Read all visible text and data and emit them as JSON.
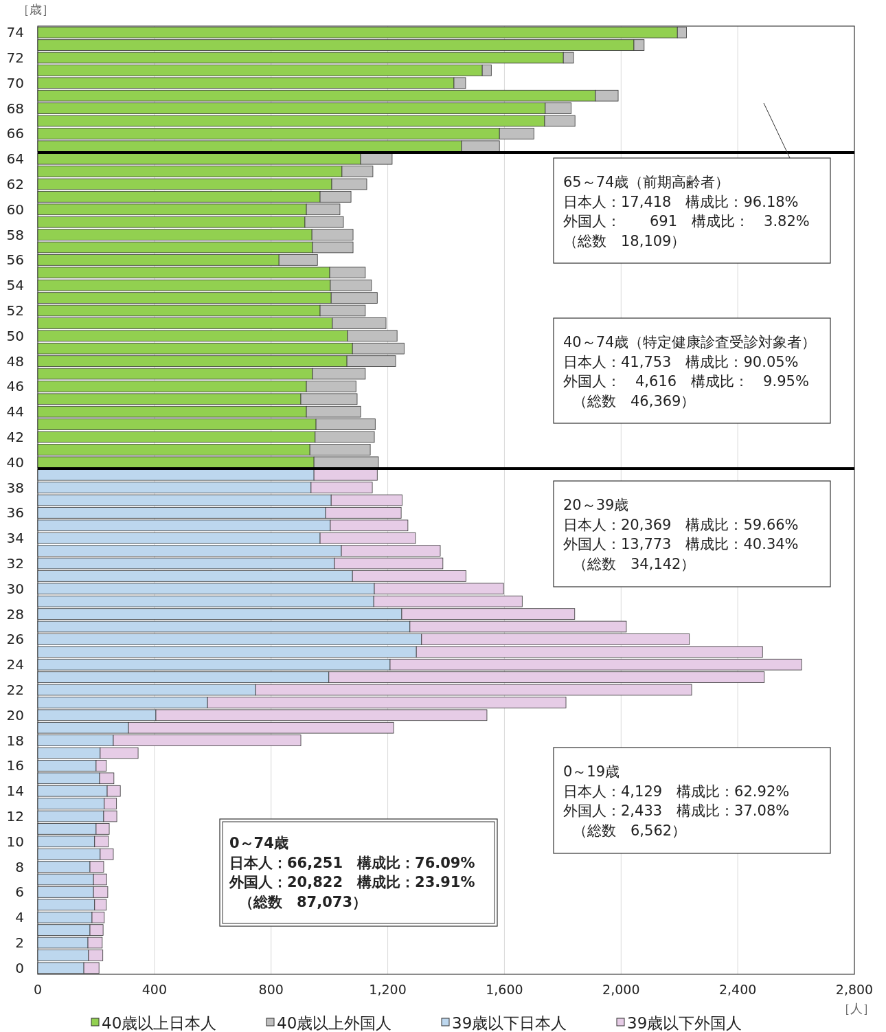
{
  "chart_data": {
    "type": "bar",
    "orientation": "horizontal",
    "stacked": true,
    "categories": [
      "74",
      null,
      "72",
      null,
      "70",
      null,
      "68",
      null,
      "66",
      null,
      "64",
      null,
      "62",
      null,
      "60",
      null,
      "58",
      null,
      "56",
      null,
      "54",
      null,
      "52",
      null,
      "50",
      null,
      "48",
      null,
      "46",
      null,
      "44",
      null,
      "42",
      null,
      "40",
      null,
      "38",
      null,
      "36",
      null,
      "34",
      null,
      "32",
      null,
      "30",
      null,
      "28",
      null,
      "26",
      null,
      "24",
      null,
      "22",
      null,
      "20",
      null,
      "18",
      null,
      "16",
      null,
      "14",
      null,
      "12",
      null,
      "10",
      null,
      "8",
      null,
      "6",
      null,
      "4",
      null,
      "2",
      null,
      "0"
    ],
    "series": [
      {
        "name": "40歳以上日本人",
        "color": "#92d050",
        "values": [
          2193,
          2044,
          1802,
          1524,
          1427,
          1912,
          1740,
          1738,
          1583,
          1453,
          1107,
          1043,
          1008,
          968,
          921,
          916,
          940,
          942,
          827,
          1001,
          1003,
          1006,
          968,
          1010,
          1062,
          1079,
          1060,
          942,
          921,
          902,
          921,
          954,
          951,
          933,
          947,
          null,
          null,
          null,
          null,
          null,
          null,
          null,
          null,
          null,
          null,
          null,
          null,
          null,
          null,
          null,
          null,
          null,
          null,
          null,
          null,
          null,
          null,
          null,
          null,
          null,
          null,
          null,
          null,
          null,
          null,
          null,
          null,
          null,
          null,
          null,
          null,
          null,
          null,
          null,
          null
        ]
      },
      {
        "name": "40歳以上外国人",
        "color": "#bfbfbf",
        "values": [
          31,
          35,
          35,
          31,
          40,
          78,
          89,
          104,
          118,
          130,
          108,
          106,
          120,
          106,
          115,
          132,
          141,
          139,
          132,
          122,
          141,
          158,
          155,
          184,
          170,
          177,
          167,
          181,
          170,
          193,
          186,
          203,
          203,
          207,
          221,
          null,
          null,
          null,
          null,
          null,
          null,
          null,
          null,
          null,
          null,
          null,
          null,
          null,
          null,
          null,
          null,
          null,
          null,
          null,
          null,
          null,
          null,
          null,
          null,
          null,
          null,
          null,
          null,
          null,
          null,
          null,
          null,
          null,
          null,
          null,
          null,
          null,
          null,
          null,
          null
        ]
      },
      {
        "name": "39歳以下日本人",
        "color": "#bdd7ee",
        "values": [
          null,
          null,
          null,
          null,
          null,
          null,
          null,
          null,
          null,
          null,
          null,
          null,
          null,
          null,
          null,
          null,
          null,
          null,
          null,
          null,
          null,
          null,
          null,
          null,
          null,
          null,
          null,
          null,
          null,
          null,
          null,
          null,
          null,
          null,
          null,
          947,
          937,
          1006,
          987,
          1003,
          968,
          1041,
          1017,
          1079,
          1154,
          1152,
          1248,
          1276,
          1316,
          1298,
          1208,
          998,
          747,
          582,
          405,
          311,
          259,
          214,
          200,
          212,
          238,
          228,
          226,
          200,
          195,
          214,
          179,
          191,
          191,
          195,
          186,
          179,
          172,
          174,
          158
        ]
      },
      {
        "name": "39歳以下外国人",
        "color": "#e6cce6",
        "values": [
          null,
          null,
          null,
          null,
          null,
          null,
          null,
          null,
          null,
          null,
          null,
          null,
          null,
          null,
          null,
          null,
          null,
          null,
          null,
          null,
          null,
          null,
          null,
          null,
          null,
          null,
          null,
          null,
          null,
          null,
          null,
          null,
          null,
          null,
          null,
          217,
          210,
          243,
          259,
          266,
          327,
          339,
          372,
          389,
          443,
          509,
          593,
          742,
          918,
          1187,
          1411,
          1493,
          1495,
          1229,
          1135,
          909,
          643,
          130,
          35,
          49,
          45,
          42,
          45,
          45,
          47,
          45,
          47,
          45,
          49,
          40,
          42,
          45,
          49,
          49,
          52
        ]
      }
    ],
    "xlim": [
      0,
      2800
    ],
    "xticks": [
      0,
      400,
      800,
      {
        "value": 1200,
        "label": "1,200"
      },
      {
        "value": 1600,
        "label": "1,600"
      },
      {
        "value": 2000,
        "label": "2,000"
      },
      {
        "value": 2400,
        "label": "2,400"
      },
      {
        "value": 2800,
        "label": "2,800"
      }
    ],
    "xlabel": "［人］",
    "ylabel": "［歳］",
    "grid": "x",
    "legend": "bottom",
    "annotations": [
      "65～74歳（前期高齢者）",
      "日本人：17,418　構成比：96.18%",
      "外国人：　　691　構成比：　3.82%",
      "（総数　18,109）",
      "40～74歳（特定健康診査受診対象者）",
      "日本人：41,753　構成比：90.05%",
      "外国人：　4,616　構成比：　9.95%",
      "（総数　46,369）",
      "20～39歳",
      "日本人：20,369　構成比：59.66%",
      "外国人：13,773　構成比：40.34%",
      "（総数　34,142）",
      "0～19歳",
      "日本人：4,129　構成比：62.92%",
      "外国人：2,433　構成比：37.08%",
      "（総数　6,562）",
      "0～74歳",
      "日本人：66,251　構成比：76.09%",
      "外国人：20,822　構成比：23.91%",
      "（総数　87,073）"
    ]
  }
}
